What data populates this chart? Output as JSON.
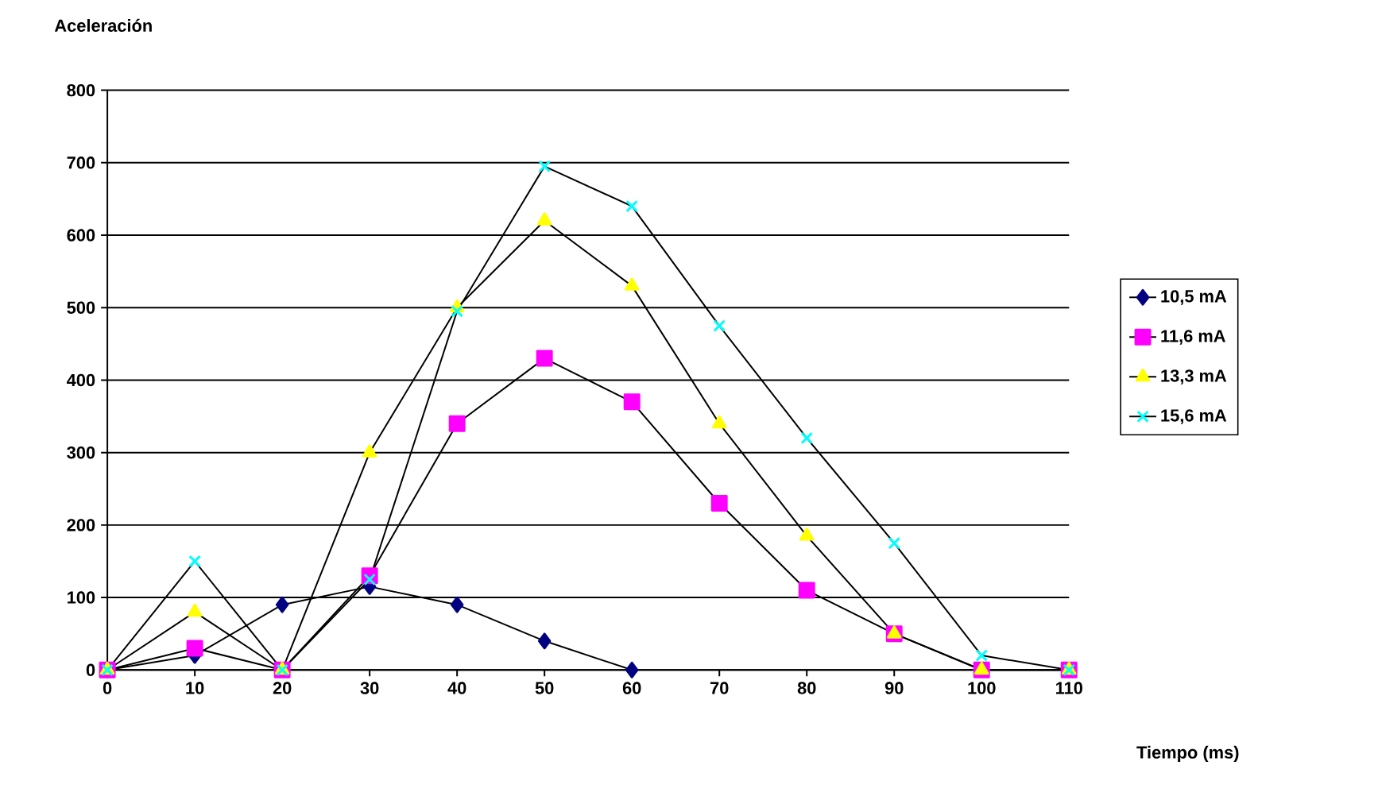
{
  "chart_data": {
    "type": "line",
    "ylabel": "Aceleración",
    "xlabel": "Tiempo (ms)",
    "x": [
      0,
      10,
      20,
      30,
      40,
      50,
      60,
      70,
      80,
      90,
      100,
      110
    ],
    "series": [
      {
        "name": "10,5 mA",
        "color": "#000080",
        "marker": "diamond",
        "values": [
          0,
          20,
          90,
          115,
          90,
          40,
          0,
          null,
          null,
          null,
          null,
          null
        ]
      },
      {
        "name": "11,6 mA",
        "color": "#ff00ff",
        "marker": "square",
        "values": [
          0,
          30,
          0,
          130,
          340,
          430,
          370,
          230,
          110,
          50,
          0,
          0
        ]
      },
      {
        "name": "13,3 mA",
        "color": "#ffff00",
        "marker": "triangle",
        "values": [
          0,
          80,
          0,
          300,
          500,
          620,
          530,
          340,
          185,
          50,
          0,
          0
        ]
      },
      {
        "name": "15,6 mA",
        "color": "#00ffff",
        "marker": "cross",
        "values": [
          0,
          150,
          0,
          125,
          495,
          695,
          640,
          475,
          320,
          175,
          20,
          0
        ]
      }
    ],
    "xlim": [
      0,
      110
    ],
    "xticks": [
      0,
      10,
      20,
      30,
      40,
      50,
      60,
      70,
      80,
      90,
      100,
      110
    ],
    "ylim": [
      0,
      800
    ],
    "yticks": [
      0,
      100,
      200,
      300,
      400,
      500,
      600,
      700,
      800
    ],
    "grid": "y",
    "legend": "right",
    "line_style": "solid"
  }
}
